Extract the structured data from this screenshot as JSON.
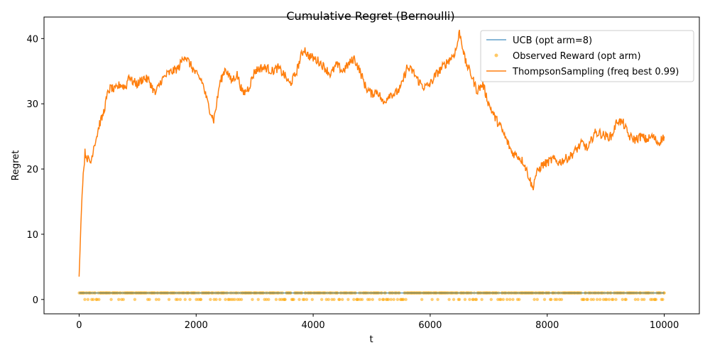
{
  "chart_data": {
    "type": "line",
    "title": "Cumulative Regret (Bernoulli)",
    "xlabel": "t",
    "ylabel": "Regret",
    "xlim": [
      -600,
      10600
    ],
    "ylim": [
      -2.2,
      43.3
    ],
    "xticks": [
      0,
      2000,
      4000,
      6000,
      8000,
      10000
    ],
    "yticks": [
      0,
      10,
      20,
      30,
      40
    ],
    "grid": false,
    "legend_position": "top-right",
    "series": [
      {
        "name": "UCB (opt arm=8)",
        "kind": "line",
        "color": "#1f77b4",
        "x": [
          0,
          10000
        ],
        "y": [
          1,
          1
        ]
      },
      {
        "name": "Observed Reward (opt arm)",
        "kind": "scatter",
        "color": "#ffa500",
        "values": [
          0,
          1
        ],
        "x_range": [
          0,
          10000
        ]
      },
      {
        "name": "ThompsonSampling (freq best 0.99)",
        "kind": "line",
        "color": "#ff7f0e",
        "x": [
          0,
          30,
          60,
          100,
          150,
          200,
          250,
          300,
          350,
          400,
          450,
          500,
          550,
          600,
          700,
          800,
          850,
          900,
          1000,
          1100,
          1200,
          1300,
          1400,
          1500,
          1600,
          1700,
          1800,
          1900,
          2000,
          2100,
          2200,
          2300,
          2350,
          2400,
          2500,
          2600,
          2700,
          2800,
          2900,
          3000,
          3100,
          3200,
          3300,
          3400,
          3500,
          3600,
          3700,
          3800,
          3850,
          3900,
          4000,
          4100,
          4200,
          4300,
          4400,
          4500,
          4600,
          4700,
          4800,
          4900,
          5000,
          5100,
          5200,
          5300,
          5400,
          5500,
          5600,
          5700,
          5800,
          5900,
          6000,
          6100,
          6200,
          6300,
          6400,
          6450,
          6500,
          6550,
          6600,
          6700,
          6800,
          6900,
          7000,
          7100,
          7200,
          7300,
          7400,
          7500,
          7600,
          7700,
          7750,
          7800,
          7900,
          8000,
          8100,
          8200,
          8300,
          8400,
          8500,
          8600,
          8700,
          8800,
          8900,
          9000,
          9100,
          9200,
          9300,
          9400,
          9500,
          9600,
          9700,
          9800,
          9900,
          10000
        ],
        "y": [
          3.5,
          11.5,
          18,
          22.5,
          21.5,
          21,
          23.5,
          25,
          27,
          28,
          30,
          32,
          32.5,
          32,
          33,
          32.5,
          34.5,
          33.5,
          33,
          34,
          33.5,
          31.5,
          33.5,
          34.5,
          35,
          35.5,
          37.5,
          36,
          34.5,
          33.5,
          30,
          27.5,
          30,
          33,
          35.5,
          33.5,
          34.5,
          31.5,
          32.5,
          35,
          35.5,
          35.5,
          35,
          35.5,
          34.5,
          33,
          34.5,
          37.5,
          38.5,
          37.5,
          37,
          36.5,
          35.5,
          34.5,
          36,
          35,
          36,
          37,
          35,
          32.5,
          31.5,
          32,
          30,
          31.5,
          31.5,
          32.5,
          35.5,
          35,
          33.5,
          32.5,
          33,
          34.5,
          35.5,
          36.5,
          37.5,
          38.5,
          41,
          39,
          36.5,
          34.5,
          32,
          33,
          30,
          28,
          26.5,
          24.5,
          22.5,
          22,
          21,
          18.5,
          17,
          19,
          20.5,
          21,
          21.5,
          21,
          21.5,
          22,
          23,
          24,
          23,
          25.5,
          25.5,
          25,
          25,
          27.5,
          27,
          25,
          24.5,
          25,
          24.5,
          25,
          24,
          25
        ]
      }
    ]
  }
}
